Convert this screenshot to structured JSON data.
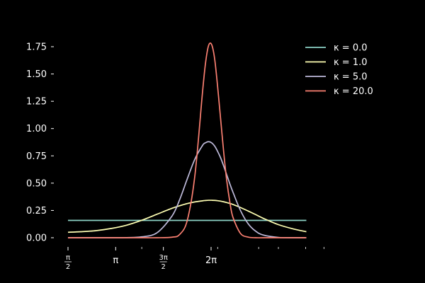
{
  "chart_data": {
    "type": "line",
    "title": "",
    "xlabel": "",
    "ylabel": "",
    "xlim": [
      1.4,
      8.9
    ],
    "ylim": [
      -0.05,
      1.85
    ],
    "grid": false,
    "background": "#000000",
    "foreground": "#ffffff",
    "legend_position": "top-right",
    "x_ticks": [
      {
        "value": 1.5708,
        "label_num": "π",
        "label_den": "2"
      },
      {
        "value": 3.1416,
        "label": "π"
      },
      {
        "value": 4.7124,
        "label_num": "3π",
        "label_den": "2"
      },
      {
        "value": 6.2832,
        "label": "2π"
      }
    ],
    "x_minor_ticks": [
      4.0,
      6.5,
      7.85,
      8.5,
      9.4,
      10.0
    ],
    "y_ticks": [
      {
        "value": 0.0,
        "label": "0.00"
      },
      {
        "value": 0.25,
        "label": "0.25"
      },
      {
        "value": 0.5,
        "label": "0.50"
      },
      {
        "value": 0.75,
        "label": "0.75"
      },
      {
        "value": 1.0,
        "label": "1.00"
      },
      {
        "value": 1.25,
        "label": "1.25"
      },
      {
        "value": 1.5,
        "label": "1.50"
      },
      {
        "value": 1.75,
        "label": "1.75"
      }
    ],
    "x": [
      1.57,
      2.0,
      2.5,
      3.0,
      3.5,
      4.0,
      4.5,
      5.0,
      5.25,
      5.5,
      5.75,
      6.0,
      6.1,
      6.2,
      6.3,
      6.4,
      6.5,
      6.6,
      6.7,
      6.8,
      6.9,
      7.0,
      7.25,
      7.5,
      7.75,
      8.0,
      8.5,
      9.0,
      9.42
    ],
    "series": [
      {
        "name": "κ = 0.0",
        "color": "#8dd3c7",
        "values": [
          0.159,
          0.159,
          0.159,
          0.159,
          0.159,
          0.159,
          0.159,
          0.159,
          0.159,
          0.159,
          0.159,
          0.159,
          0.159,
          0.159,
          0.159,
          0.159,
          0.159,
          0.159,
          0.159,
          0.159,
          0.159,
          0.159,
          0.159,
          0.159,
          0.159,
          0.159,
          0.159,
          0.159,
          0.159
        ]
      },
      {
        "name": "κ = 1.0",
        "color": "#ffffb3",
        "values": [
          0.05,
          0.055,
          0.065,
          0.085,
          0.115,
          0.16,
          0.215,
          0.27,
          0.293,
          0.313,
          0.328,
          0.338,
          0.341,
          0.343,
          0.343,
          0.342,
          0.339,
          0.335,
          0.329,
          0.322,
          0.314,
          0.305,
          0.277,
          0.245,
          0.212,
          0.178,
          0.12,
          0.08,
          0.055
        ]
      },
      {
        "name": "κ = 5.0",
        "color": "#bebada",
        "values": [
          0.0,
          0.0,
          0.0,
          0.0,
          0.001,
          0.008,
          0.045,
          0.2,
          0.35,
          0.54,
          0.72,
          0.845,
          0.87,
          0.88,
          0.87,
          0.84,
          0.79,
          0.73,
          0.655,
          0.575,
          0.495,
          0.42,
          0.25,
          0.13,
          0.06,
          0.025,
          0.003,
          0.0,
          0.0
        ]
      },
      {
        "name": "κ = 20.0",
        "color": "#fb8072",
        "values": [
          0.0,
          0.0,
          0.0,
          0.0,
          0.0,
          0.0,
          0.0,
          0.005,
          0.03,
          0.16,
          0.57,
          1.33,
          1.6,
          1.76,
          1.77,
          1.64,
          1.38,
          1.08,
          0.78,
          0.52,
          0.33,
          0.19,
          0.04,
          0.006,
          0.0,
          0.0,
          0.0,
          0.0,
          0.0
        ]
      }
    ]
  }
}
